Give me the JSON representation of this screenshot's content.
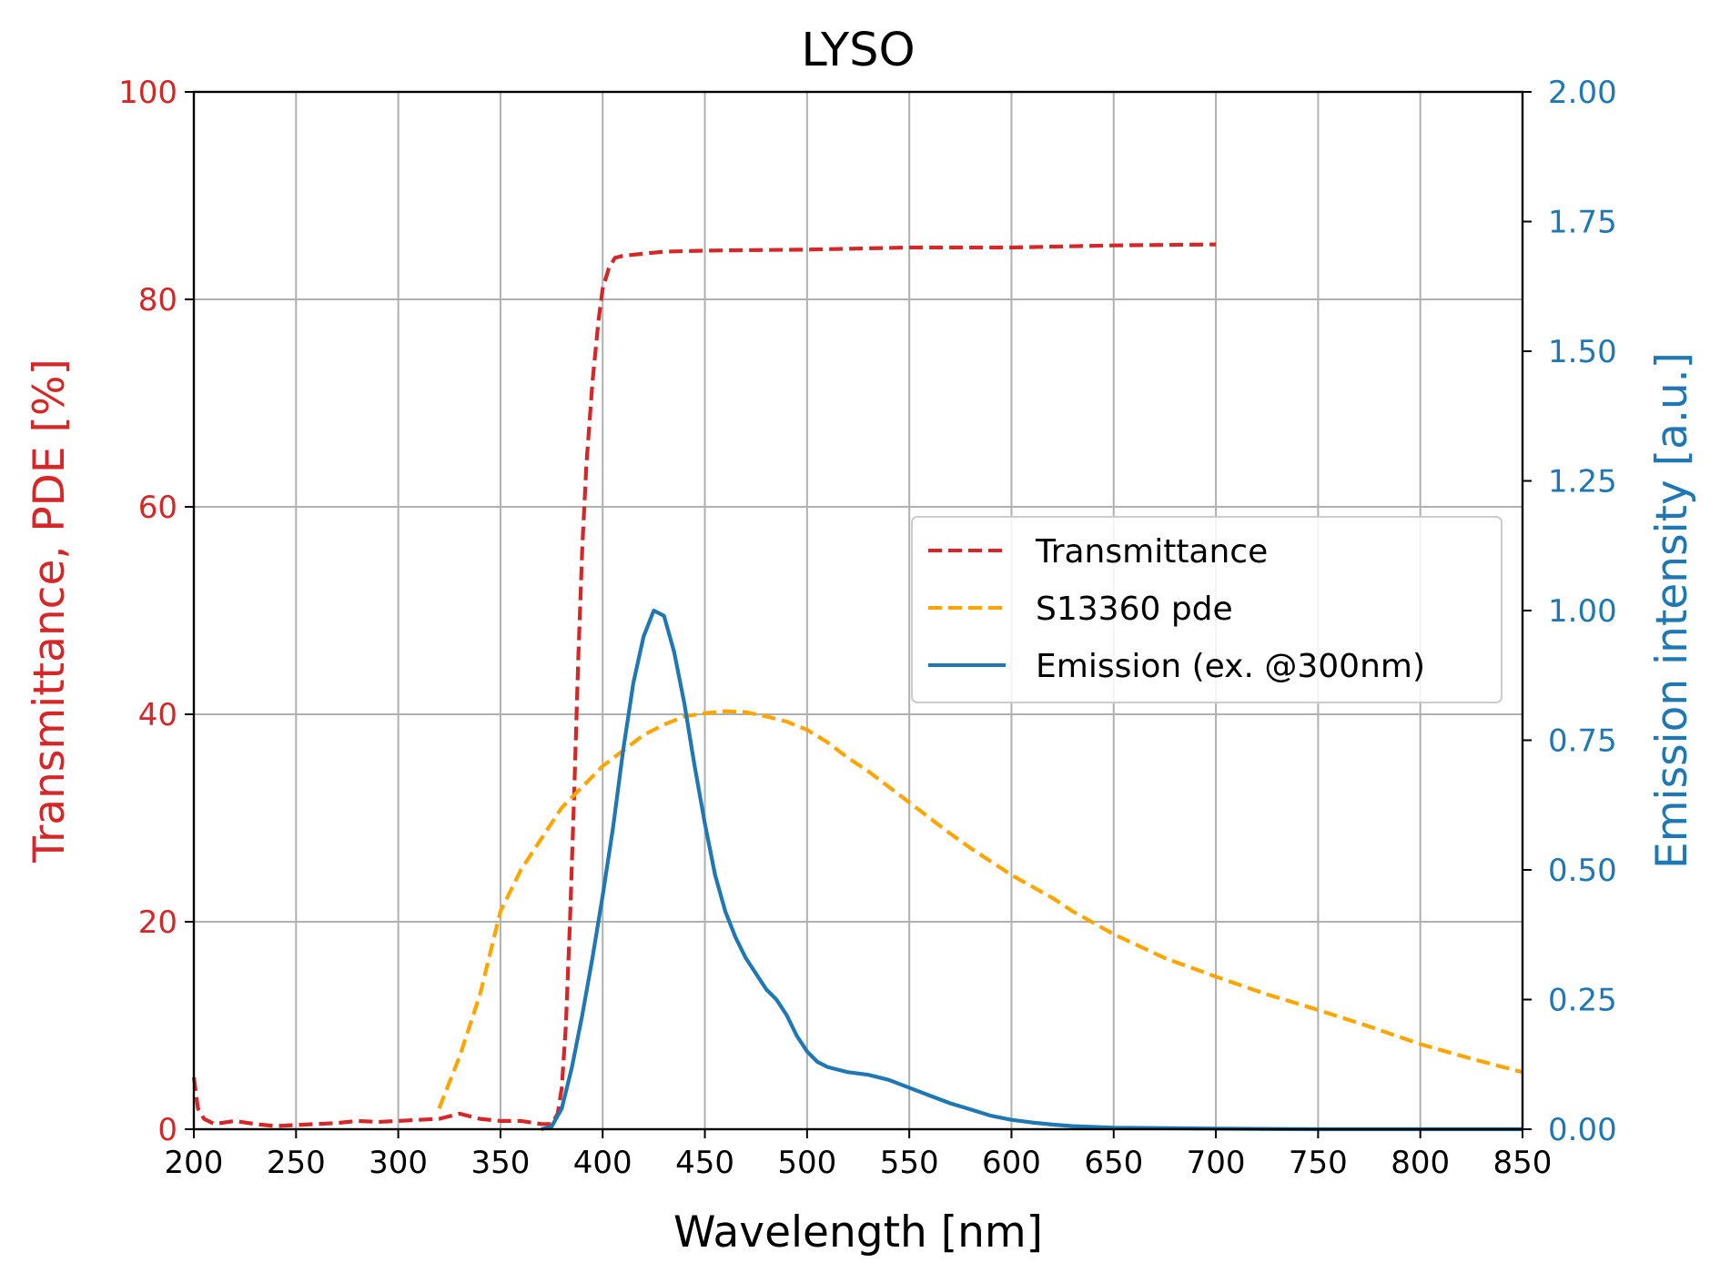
{
  "chart_data": {
    "type": "line",
    "title": "LYSO",
    "xlabel": "Wavelength [nm]",
    "ylabel": "Transmittance, PDE [%]",
    "ylabel_right": "Emission intensity [a.u.]",
    "xlim": [
      200,
      850
    ],
    "ylim": [
      0,
      100
    ],
    "ylim_right": [
      0,
      2.0
    ],
    "x_ticks": [
      200,
      250,
      300,
      350,
      400,
      450,
      500,
      550,
      600,
      650,
      700,
      750,
      800,
      850
    ],
    "y_ticks": [
      0,
      20,
      40,
      60,
      80,
      100
    ],
    "y_ticks_right": [
      "0.00",
      "0.25",
      "0.50",
      "0.75",
      "1.00",
      "1.25",
      "1.50",
      "1.75",
      "2.00"
    ],
    "grid": true,
    "legend_position": "center-right",
    "colors": {
      "left_axis": "#d62728",
      "right_axis": "#1f77b4"
    },
    "series": [
      {
        "name": "Transmittance",
        "axis": "left",
        "color": "#d62728",
        "style": "dashed",
        "points": [
          [
            200,
            5
          ],
          [
            202,
            2
          ],
          [
            205,
            1
          ],
          [
            210,
            0.5
          ],
          [
            220,
            0.8
          ],
          [
            230,
            0.5
          ],
          [
            240,
            0.3
          ],
          [
            250,
            0.4
          ],
          [
            260,
            0.5
          ],
          [
            270,
            0.6
          ],
          [
            280,
            0.8
          ],
          [
            290,
            0.7
          ],
          [
            300,
            0.8
          ],
          [
            310,
            0.9
          ],
          [
            320,
            1.0
          ],
          [
            330,
            1.5
          ],
          [
            340,
            1.0
          ],
          [
            350,
            0.8
          ],
          [
            360,
            0.8
          ],
          [
            370,
            0.5
          ],
          [
            375,
            0.5
          ],
          [
            378,
            1.5
          ],
          [
            380,
            4
          ],
          [
            382,
            10
          ],
          [
            384,
            20
          ],
          [
            386,
            32
          ],
          [
            388,
            45
          ],
          [
            390,
            56
          ],
          [
            392,
            64
          ],
          [
            395,
            72
          ],
          [
            398,
            78
          ],
          [
            400,
            81
          ],
          [
            403,
            83
          ],
          [
            406,
            84
          ],
          [
            410,
            84.2
          ],
          [
            420,
            84.4
          ],
          [
            430,
            84.6
          ],
          [
            450,
            84.7
          ],
          [
            500,
            84.8
          ],
          [
            550,
            85.0
          ],
          [
            600,
            85.0
          ],
          [
            650,
            85.2
          ],
          [
            700,
            85.3
          ]
        ]
      },
      {
        "name": "S13360 pde",
        "axis": "left",
        "color": "#ffa500",
        "style": "dashed",
        "points": [
          [
            320,
            2
          ],
          [
            330,
            7
          ],
          [
            340,
            13
          ],
          [
            350,
            21
          ],
          [
            360,
            25
          ],
          [
            370,
            28
          ],
          [
            380,
            31
          ],
          [
            390,
            33
          ],
          [
            400,
            35
          ],
          [
            410,
            36.5
          ],
          [
            420,
            38
          ],
          [
            430,
            39
          ],
          [
            440,
            39.8
          ],
          [
            450,
            40.1
          ],
          [
            460,
            40.3
          ],
          [
            470,
            40.2
          ],
          [
            480,
            39.8
          ],
          [
            490,
            39.3
          ],
          [
            500,
            38.5
          ],
          [
            510,
            37.3
          ],
          [
            520,
            35.8
          ],
          [
            530,
            34.5
          ],
          [
            540,
            33
          ],
          [
            550,
            31.5
          ],
          [
            560,
            30
          ],
          [
            570,
            28.5
          ],
          [
            580,
            27.1
          ],
          [
            590,
            25.8
          ],
          [
            600,
            24.5
          ],
          [
            610,
            23.4
          ],
          [
            620,
            22.3
          ],
          [
            630,
            21
          ],
          [
            640,
            19.9
          ],
          [
            650,
            18.8
          ],
          [
            675,
            16.5
          ],
          [
            700,
            14.7
          ],
          [
            725,
            13
          ],
          [
            750,
            11.5
          ],
          [
            775,
            9.9
          ],
          [
            800,
            8.2
          ],
          [
            825,
            6.8
          ],
          [
            850,
            5.5
          ]
        ]
      },
      {
        "name": "Emission (ex. @300nm)",
        "axis": "right",
        "color": "#1f77b4",
        "style": "solid",
        "points": [
          [
            370,
            0
          ],
          [
            375,
            0.005
          ],
          [
            380,
            0.04
          ],
          [
            385,
            0.12
          ],
          [
            390,
            0.22
          ],
          [
            395,
            0.33
          ],
          [
            400,
            0.45
          ],
          [
            405,
            0.58
          ],
          [
            410,
            0.73
          ],
          [
            415,
            0.86
          ],
          [
            420,
            0.95
          ],
          [
            425,
            1.0
          ],
          [
            430,
            0.99
          ],
          [
            435,
            0.92
          ],
          [
            440,
            0.82
          ],
          [
            445,
            0.7
          ],
          [
            450,
            0.59
          ],
          [
            455,
            0.49
          ],
          [
            460,
            0.42
          ],
          [
            465,
            0.37
          ],
          [
            470,
            0.33
          ],
          [
            475,
            0.3
          ],
          [
            480,
            0.27
          ],
          [
            485,
            0.25
          ],
          [
            490,
            0.22
          ],
          [
            495,
            0.18
          ],
          [
            500,
            0.15
          ],
          [
            505,
            0.13
          ],
          [
            510,
            0.12
          ],
          [
            515,
            0.115
          ],
          [
            520,
            0.11
          ],
          [
            530,
            0.105
          ],
          [
            540,
            0.095
          ],
          [
            550,
            0.08
          ],
          [
            560,
            0.065
          ],
          [
            570,
            0.05
          ],
          [
            580,
            0.038
          ],
          [
            590,
            0.026
          ],
          [
            600,
            0.018
          ],
          [
            610,
            0.013
          ],
          [
            620,
            0.009
          ],
          [
            630,
            0.006
          ],
          [
            650,
            0.003
          ],
          [
            700,
            0.001
          ],
          [
            750,
            0
          ],
          [
            850,
            0
          ]
        ]
      }
    ]
  }
}
